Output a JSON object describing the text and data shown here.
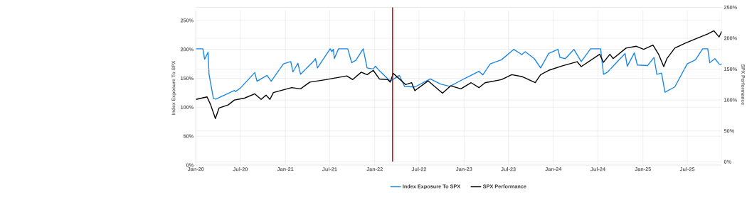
{
  "chart_data": {
    "type": "line",
    "xlabel": null,
    "ylabel": "Index Exposure To SPX",
    "y2label": "SPX Performance",
    "xlim": [
      "2020-01-01",
      "2025-11-19"
    ],
    "xticks": [
      {
        "value": "2020-01-01",
        "label": "Jan-20"
      },
      {
        "value": "2020-07-01",
        "label": "Jul-20"
      },
      {
        "value": "2021-01-01",
        "label": "Jan-21"
      },
      {
        "value": "2021-07-01",
        "label": "Jul-21"
      },
      {
        "value": "2022-01-01",
        "label": "Jan-22"
      },
      {
        "value": "2022-07-01",
        "label": "Jul-22"
      },
      {
        "value": "2023-01-01",
        "label": "Jan-23"
      },
      {
        "value": "2023-07-01",
        "label": "Jul-23"
      },
      {
        "value": "2024-01-01",
        "label": "Jan-24"
      },
      {
        "value": "2024-07-01",
        "label": "Jul-24"
      },
      {
        "value": "2025-01-01",
        "label": "Jan-25"
      },
      {
        "value": "2025-07-01",
        "label": "Jul-25"
      }
    ],
    "ylim": [
      0,
      267
    ],
    "yticks": [
      {
        "value": 0,
        "label": "0%"
      },
      {
        "value": 50,
        "label": "50%"
      },
      {
        "value": 100,
        "label": "100%"
      },
      {
        "value": 150,
        "label": "150%"
      },
      {
        "value": 200,
        "label": "200%"
      },
      {
        "value": 250,
        "label": "250%"
      }
    ],
    "y2lim": [
      0,
      250
    ],
    "y2ticks": [
      {
        "value": 0,
        "label": "0%"
      },
      {
        "value": 50,
        "label": "50%"
      },
      {
        "value": 100,
        "label": "100%"
      },
      {
        "value": 150,
        "label": "150%"
      },
      {
        "value": 200,
        "label": "200%"
      },
      {
        "value": 250,
        "label": "250%"
      }
    ],
    "grid": true,
    "legend": "bottom",
    "ref_lines": [
      {
        "axis": "x",
        "value": "2022-03-15",
        "color": "#c00000"
      }
    ],
    "series": [
      {
        "name": "Index Exposure To SPX",
        "color": "#1a86e6",
        "x": [
          "2020-01-02",
          "2020-01-30",
          "2020-02-06",
          "2020-02-20",
          "2020-02-24",
          "2020-03-13",
          "2020-03-23",
          "2020-06-07",
          "2020-06-11",
          "2020-07-01",
          "2020-08-29",
          "2020-09-07",
          "2020-10-18",
          "2020-11-04",
          "2020-12-24",
          "2021-01-23",
          "2021-02-01",
          "2021-02-21",
          "2021-03-04",
          "2021-04-27",
          "2021-05-04",
          "2021-05-12",
          "2021-07-03",
          "2021-07-10",
          "2021-07-16",
          "2021-07-20",
          "2021-08-06",
          "2021-09-13",
          "2021-09-29",
          "2021-10-16",
          "2021-11-15",
          "2021-12-01",
          "2021-12-26",
          "2022-01-04",
          "2022-01-16",
          "2022-03-05",
          "2022-04-12",
          "2022-05-03",
          "2022-06-14",
          "2022-08-16",
          "2022-09-27",
          "2022-11-04",
          "2023-01-05",
          "2023-03-03",
          "2023-03-19",
          "2023-04-18",
          "2023-06-03",
          "2023-07-23",
          "2023-08-25",
          "2023-09-08",
          "2023-10-15",
          "2023-11-10",
          "2023-12-13",
          "2024-01-20",
          "2024-01-28",
          "2024-02-19",
          "2024-03-25",
          "2024-04-24",
          "2024-06-01",
          "2024-07-12",
          "2024-07-24",
          "2024-08-10",
          "2024-10-20",
          "2024-10-29",
          "2024-11-27",
          "2024-12-09",
          "2025-01-20",
          "2025-02-15",
          "2025-02-27",
          "2025-03-18",
          "2025-04-01",
          "2025-05-11",
          "2025-07-01",
          "2025-08-04",
          "2025-09-02",
          "2025-09-23",
          "2025-10-01",
          "2025-10-22",
          "2025-11-08",
          "2025-11-19"
        ],
        "values": [
          201,
          201,
          183,
          195,
          157,
          115,
          114,
          129,
          127,
          133,
          160,
          145,
          155,
          145,
          175,
          179,
          161,
          176,
          157,
          180,
          184,
          168,
          201,
          196,
          200,
          184,
          201,
          201,
          177,
          181,
          201,
          168,
          166,
          171,
          165,
          145,
          155,
          136,
          135,
          149,
          140,
          136,
          150,
          162,
          156,
          175,
          182,
          200,
          191,
          196,
          184,
          168,
          193,
          200,
          186,
          184,
          200,
          179,
          201,
          201,
          157,
          161,
          193,
          171,
          194,
          173,
          172,
          186,
          157,
          159,
          126,
          135,
          175,
          182,
          201,
          201,
          177,
          184,
          175,
          173
        ]
      },
      {
        "name": "SPX Performance",
        "color": "#000000",
        "axis": "y2",
        "x": [
          "2020-01-02",
          "2020-02-16",
          "2020-03-02",
          "2020-03-21",
          "2020-04-05",
          "2020-05-12",
          "2020-06-07",
          "2020-07-18",
          "2020-08-29",
          "2020-09-24",
          "2020-10-14",
          "2020-10-30",
          "2020-11-13",
          "2021-01-27",
          "2021-03-04",
          "2021-04-11",
          "2021-06-16",
          "2021-09-09",
          "2021-10-03",
          "2021-11-07",
          "2021-12-01",
          "2021-12-26",
          "2022-01-20",
          "2022-02-23",
          "2022-03-05",
          "2022-03-18",
          "2022-05-07",
          "2022-06-01",
          "2022-06-14",
          "2022-08-07",
          "2022-10-05",
          "2022-11-08",
          "2022-12-19",
          "2023-01-30",
          "2023-03-03",
          "2023-03-28",
          "2023-06-03",
          "2023-07-15",
          "2023-08-25",
          "2023-10-19",
          "2023-11-10",
          "2023-12-13",
          "2024-02-05",
          "2024-04-07",
          "2024-04-24",
          "2024-07-08",
          "2024-07-24",
          "2024-08-19",
          "2024-09-01",
          "2024-10-24",
          "2024-12-05",
          "2025-01-04",
          "2025-02-11",
          "2025-03-06",
          "2025-03-27",
          "2025-04-09",
          "2025-05-11",
          "2025-06-23",
          "2025-08-04",
          "2025-09-23",
          "2025-10-18",
          "2025-11-08",
          "2025-11-19"
        ],
        "values": [
          101,
          105,
          92,
          70,
          87,
          92,
          100,
          103,
          110,
          101,
          108,
          101,
          112,
          120,
          118,
          129,
          133,
          139,
          133,
          145,
          141,
          148,
          134,
          133,
          129,
          143,
          125,
          128,
          115,
          131,
          111,
          123,
          118,
          128,
          120,
          128,
          133,
          141,
          138,
          128,
          141,
          148,
          155,
          162,
          154,
          174,
          161,
          174,
          167,
          184,
          187,
          182,
          189,
          174,
          154,
          167,
          184,
          192,
          199,
          207,
          212,
          202,
          211
        ]
      }
    ]
  }
}
